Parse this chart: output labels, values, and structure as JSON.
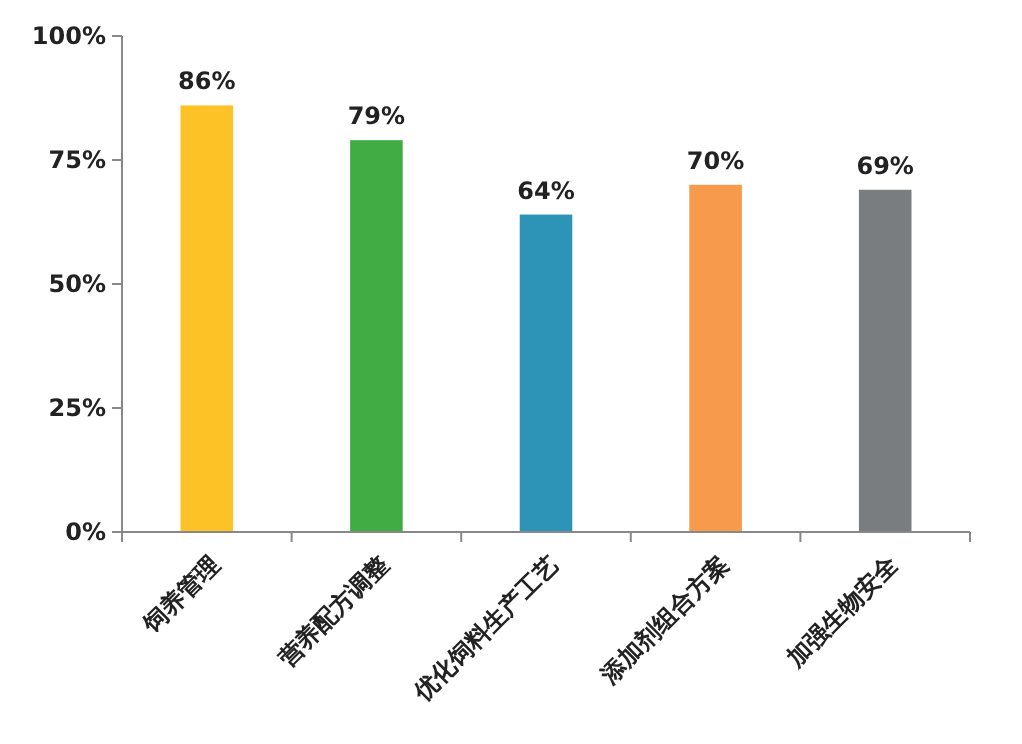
{
  "chart_data": {
    "type": "bar",
    "categories": [
      "饲养管理",
      "营养配方调整",
      "优化饲料生产工艺",
      "添加剂组合方案",
      "加强生物安全"
    ],
    "values": [
      86,
      79,
      64,
      70,
      69
    ],
    "colors": [
      "#fdc226",
      "#41ac43",
      "#2d94b8",
      "#f79a4c",
      "#797d80"
    ],
    "value_labels": [
      "86%",
      "79%",
      "64%",
      "70%",
      "69%"
    ],
    "ylim": [
      0,
      100
    ],
    "yticks": [
      {
        "value": 0,
        "label": "0%"
      },
      {
        "value": 25,
        "label": "25%"
      },
      {
        "value": 50,
        "label": "50%"
      },
      {
        "value": 75,
        "label": "75%"
      },
      {
        "value": 100,
        "label": "100%"
      }
    ],
    "grid": false
  }
}
